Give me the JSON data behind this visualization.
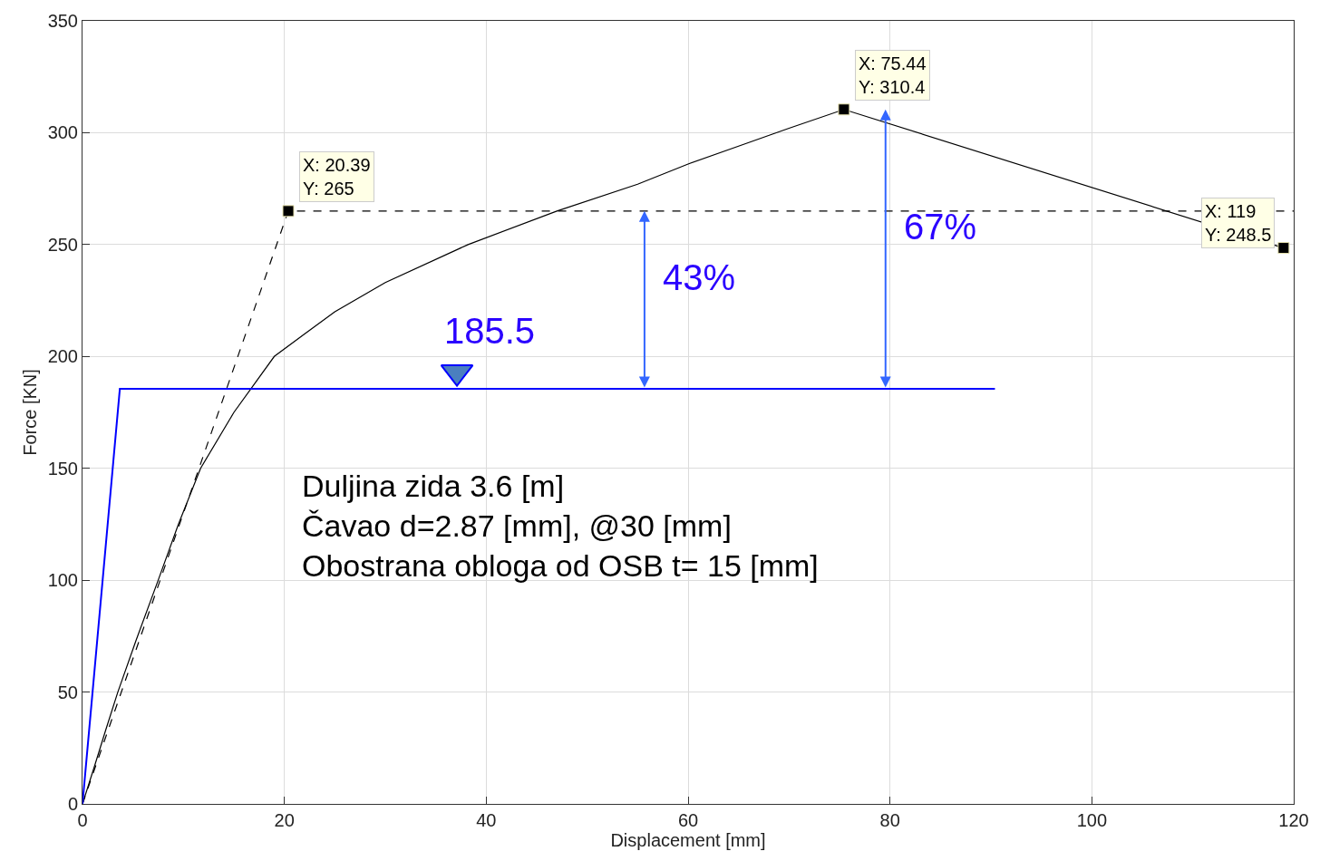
{
  "chart_data": {
    "type": "line",
    "xlabel": "Displacement [mm]",
    "ylabel": "Force [KN]",
    "xlim": [
      0,
      120
    ],
    "xticks": [
      0,
      20,
      40,
      60,
      80,
      100,
      120
    ],
    "ylim": [
      0,
      350
    ],
    "yticks": [
      0,
      50,
      100,
      150,
      200,
      250,
      300,
      350
    ],
    "grid": true,
    "series": [
      {
        "color": "#000000",
        "line_style": "solid",
        "x": [
          0,
          1.2,
          2.3,
          3.5,
          5.3,
          7.5,
          9.5,
          11.7,
          15,
          19,
          22,
          25,
          30,
          38.2,
          47,
          55,
          60,
          65,
          70,
          75.44,
          119
        ],
        "values": [
          0,
          17,
          33,
          50,
          73,
          100,
          125,
          150,
          175,
          200,
          210,
          220,
          233,
          250,
          265,
          277,
          286,
          294,
          302,
          310.4,
          248.5
        ]
      },
      {
        "color": "#000000",
        "line_style": "dashed",
        "x": [
          0,
          20.39,
          120
        ],
        "values": [
          0,
          265,
          265
        ]
      },
      {
        "color": "#0000ff",
        "line_style": "solid",
        "x": [
          0,
          3.7,
          90.4
        ],
        "values": [
          0,
          185.5,
          185.5
        ]
      },
      {
        "type": "scatter",
        "marker": "triangle",
        "color": "#4a7fbf",
        "x": [
          37.1
        ],
        "values": [
          193
        ]
      }
    ],
    "annotations": [
      {
        "text": "X: 20.39\nY: 265",
        "x": 20.39,
        "y": 265
      },
      {
        "text": "X: 75.44\nY: 310.4",
        "x": 75.44,
        "y": 310.4
      },
      {
        "text": "X: 119\nY: 248.5",
        "x": 119,
        "y": 248.5
      },
      {
        "text": "185.5",
        "x": 37.1,
        "y": 185.5
      },
      "43%",
      "67%",
      "Duljina zida 3.6 [m]\nČavao d=2.87 [mm], @30 [mm]\nObostrana obloga od OSB t= 15 [mm]"
    ]
  }
}
